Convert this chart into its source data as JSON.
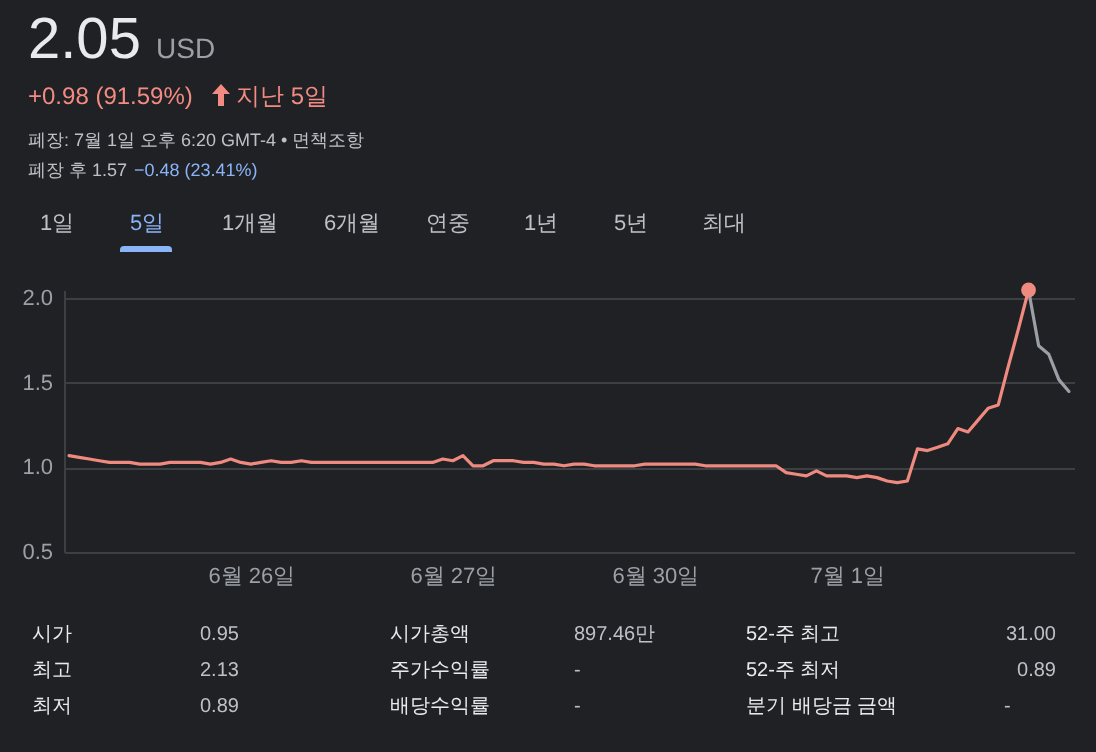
{
  "chart_data": {
    "type": "line",
    "categories": [
      null,
      null,
      null,
      null,
      null,
      null,
      null,
      null,
      null,
      null,
      null,
      null,
      null,
      null,
      null,
      null,
      null,
      null,
      "6월 26일",
      null,
      null,
      null,
      null,
      null,
      null,
      null,
      null,
      null,
      null,
      null,
      null,
      null,
      null,
      null,
      null,
      null,
      null,
      null,
      "6월 27일",
      null,
      null,
      null,
      null,
      null,
      null,
      null,
      null,
      null,
      null,
      null,
      null,
      null,
      null,
      null,
      null,
      null,
      null,
      null,
      "6월 30일",
      null,
      null,
      null,
      null,
      null,
      null,
      null,
      null,
      null,
      null,
      null,
      null,
      null,
      null,
      null,
      null,
      null,
      null,
      "7월 1일",
      null,
      null,
      null,
      null,
      null,
      null,
      null,
      null,
      null,
      null,
      null,
      null,
      null,
      null,
      null,
      null,
      null,
      null,
      null,
      null,
      null,
      null
    ],
    "series": [
      {
        "color": "#ee8a7f",
        "values": [
          1.07,
          1.06,
          1.05,
          1.04,
          1.03,
          1.03,
          1.03,
          1.02,
          1.02,
          1.02,
          1.03,
          1.03,
          1.03,
          1.03,
          1.02,
          1.03,
          1.05,
          1.03,
          1.02,
          1.03,
          1.04,
          1.03,
          1.03,
          1.04,
          1.03,
          1.03,
          1.03,
          1.03,
          1.03,
          1.03,
          1.03,
          1.03,
          1.03,
          1.03,
          1.03,
          1.03,
          1.03,
          1.05,
          1.04,
          1.07,
          1.01,
          1.01,
          1.04,
          1.04,
          1.04,
          1.03,
          1.03,
          1.02,
          1.02,
          1.01,
          1.02,
          1.02,
          1.01,
          1.01,
          1.01,
          1.01,
          1.01,
          1.02,
          1.02,
          1.02,
          1.02,
          1.02,
          1.02,
          1.01,
          1.01,
          1.01,
          1.01,
          1.01,
          1.01,
          1.01,
          1.01,
          0.97,
          0.96,
          0.95,
          0.98,
          0.95,
          0.95,
          0.95,
          0.94,
          0.95,
          0.94,
          0.92,
          0.91,
          0.92,
          1.11,
          1.1,
          1.12,
          1.14,
          1.23,
          1.21,
          1.28,
          1.35,
          1.37,
          1.6,
          1.82,
          2.05,
          null,
          null,
          null,
          null
        ]
      },
      {
        "type": "line",
        "color": "#9aa0a6",
        "values": [
          null,
          null,
          null,
          null,
          null,
          null,
          null,
          null,
          null,
          null,
          null,
          null,
          null,
          null,
          null,
          null,
          null,
          null,
          null,
          null,
          null,
          null,
          null,
          null,
          null,
          null,
          null,
          null,
          null,
          null,
          null,
          null,
          null,
          null,
          null,
          null,
          null,
          null,
          null,
          null,
          null,
          null,
          null,
          null,
          null,
          null,
          null,
          null,
          null,
          null,
          null,
          null,
          null,
          null,
          null,
          null,
          null,
          null,
          null,
          null,
          null,
          null,
          null,
          null,
          null,
          null,
          null,
          null,
          null,
          null,
          null,
          null,
          null,
          null,
          null,
          null,
          null,
          null,
          null,
          null,
          null,
          null,
          null,
          null,
          null,
          null,
          null,
          null,
          null,
          null,
          null,
          null,
          null,
          null,
          null,
          2.05,
          1.72,
          1.67,
          1.52,
          1.45
        ]
      },
      {
        "type": "scatter",
        "color": "#ee8a7f",
        "values": [
          null,
          null,
          null,
          null,
          null,
          null,
          null,
          null,
          null,
          null,
          null,
          null,
          null,
          null,
          null,
          null,
          null,
          null,
          null,
          null,
          null,
          null,
          null,
          null,
          null,
          null,
          null,
          null,
          null,
          null,
          null,
          null,
          null,
          null,
          null,
          null,
          null,
          null,
          null,
          null,
          null,
          null,
          null,
          null,
          null,
          null,
          null,
          null,
          null,
          null,
          null,
          null,
          null,
          null,
          null,
          null,
          null,
          null,
          null,
          null,
          null,
          null,
          null,
          null,
          null,
          null,
          null,
          null,
          null,
          null,
          null,
          null,
          null,
          null,
          null,
          null,
          null,
          null,
          null,
          null,
          null,
          null,
          null,
          null,
          null,
          null,
          null,
          null,
          null,
          null,
          null,
          null,
          null,
          null,
          null,
          2.05,
          null,
          null,
          null,
          null
        ]
      }
    ],
    "ylim": [
      0.5,
      2.05
    ],
    "yticks": [
      0.5,
      {
        "value": 1,
        "label": "1.0"
      },
      1.5,
      {
        "value": 2,
        "label": "2.0"
      }
    ],
    "grid": "y",
    "annotations": [
      "2.05",
      "USD",
      "+0.98 (91.59%)",
      "지난 5일",
      "폐장: 7월 1일 오후 6:20 GMT-4 • 면책조항",
      "폐장 후 1.57",
      "−0.48 (23.41%)",
      "1일",
      "5일",
      "1개월",
      "6개월",
      "연중",
      "1년",
      "5년",
      "최대",
      "시가",
      "0.95",
      "최고",
      "2.13",
      "최저",
      "0.89",
      "시가총액",
      "897.46만",
      "주가수익률",
      "-",
      "배당수익률",
      "-",
      "52-주 최고",
      "31.00",
      "52-주 최저",
      "0.89",
      "분기 배당금 금액",
      "-"
    ]
  }
}
